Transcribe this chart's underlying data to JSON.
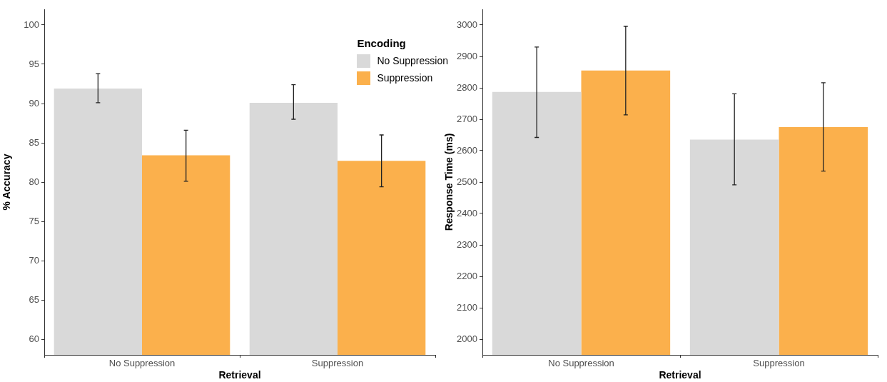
{
  "chart_data": [
    {
      "type": "bar",
      "xlabel": "Retrieval",
      "ylabel": "% Accuracy",
      "legend_title": "Encoding",
      "legend": "top right",
      "categories": [
        "No Suppression",
        "Suppression"
      ],
      "series": [
        {
          "name": "No Suppression",
          "color": "#d9d9d9",
          "values": [
            91.9,
            90.1
          ],
          "errors": [
            [
              90.1,
              93.8
            ],
            [
              88.0,
              92.4
            ]
          ]
        },
        {
          "name": "Suppression",
          "color": "#fbb04c",
          "values": [
            83.4,
            82.7
          ],
          "errors": [
            [
              80.1,
              86.6
            ],
            [
              79.4,
              86.0
            ]
          ]
        }
      ],
      "ylim": [
        58,
        102
      ],
      "yticks": [
        60,
        65,
        70,
        75,
        80,
        85,
        90,
        95,
        100
      ]
    },
    {
      "type": "bar",
      "xlabel": "Retrieval",
      "ylabel": "Response Time (ms)",
      "categories": [
        "No Suppression",
        "Suppression"
      ],
      "series": [
        {
          "color": "#d9d9d9",
          "values": [
            2787,
            2635
          ],
          "errors": [
            [
              2642,
              2930
            ],
            [
              2491,
              2781
            ]
          ]
        },
        {
          "color": "#fbb04c",
          "values": [
            2855,
            2675
          ],
          "errors": [
            [
              2714,
              2996
            ],
            [
              2535,
              2816
            ]
          ]
        }
      ],
      "ylim": [
        1950,
        3050
      ],
      "yticks": [
        2000,
        2100,
        2200,
        2300,
        2400,
        2500,
        2600,
        2700,
        2800,
        2900,
        3000
      ]
    }
  ]
}
